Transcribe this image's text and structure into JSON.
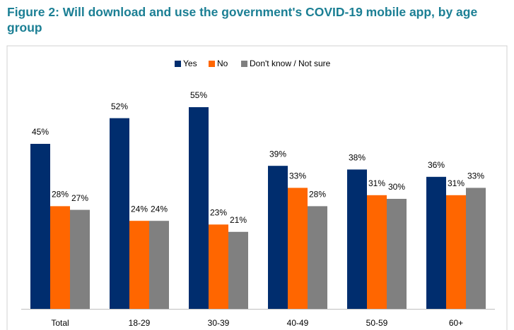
{
  "chart_data": {
    "type": "bar",
    "title": "Figure 2: Will download and use the government's COVID-19 mobile app, by age group",
    "categories": [
      "Total",
      "18-29",
      "30-39",
      "40-49",
      "50-59",
      "60+"
    ],
    "series": [
      {
        "name": "Yes",
        "color": "#002d6e",
        "values": [
          45,
          52,
          55,
          39,
          38,
          36
        ],
        "value_labels": [
          "45%",
          "52%",
          "55%",
          "39%",
          "38%",
          "36%"
        ]
      },
      {
        "name": "No",
        "color": "#ff6600",
        "values": [
          28,
          24,
          23,
          33,
          31,
          31
        ],
        "value_labels": [
          "28%",
          "24%",
          "23%",
          "33%",
          "31%",
          "31%"
        ]
      },
      {
        "name": "Don't know / Not sure",
        "color": "#808080",
        "values": [
          27,
          24,
          21,
          28,
          30,
          33
        ],
        "value_labels": [
          "27%",
          "24%",
          "21%",
          "28%",
          "30%",
          "33%"
        ]
      }
    ],
    "ylim": [
      0,
      60
    ],
    "legend": "top"
  }
}
